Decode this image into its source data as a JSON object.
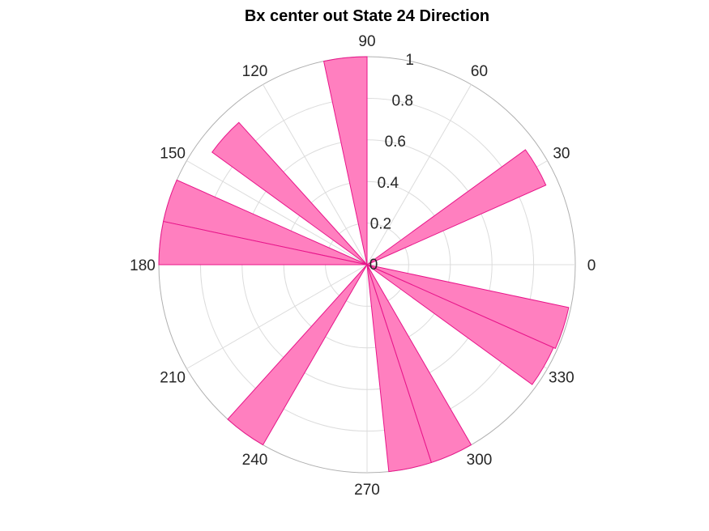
{
  "chart_data": {
    "type": "polar-histogram",
    "title": "Bx  center out State 24 Direction",
    "theta_ticks": [
      "0",
      "30",
      "60",
      "90",
      "120",
      "150",
      "180",
      "210",
      "240",
      "270",
      "300",
      "330"
    ],
    "r_ticks": [
      "0",
      "0.2",
      "0.4",
      "0.6",
      "0.8",
      "1"
    ],
    "rlim": [
      0,
      1
    ],
    "bin_width_deg": 12,
    "bins": [
      {
        "center_deg": 30,
        "value": 0.94
      },
      {
        "center_deg": 96,
        "value": 1.0
      },
      {
        "center_deg": 138,
        "value": 0.92
      },
      {
        "center_deg": 162,
        "value": 1.0
      },
      {
        "center_deg": 174,
        "value": 1.0
      },
      {
        "center_deg": 234,
        "value": 1.0
      },
      {
        "center_deg": 282,
        "value": 1.0
      },
      {
        "center_deg": 294,
        "value": 1.0
      },
      {
        "center_deg": 330,
        "value": 0.98
      },
      {
        "center_deg": 342,
        "value": 0.99
      }
    ],
    "bar_fill": "#ff7fbf",
    "bar_edge": "#e8158a",
    "grid": true
  }
}
